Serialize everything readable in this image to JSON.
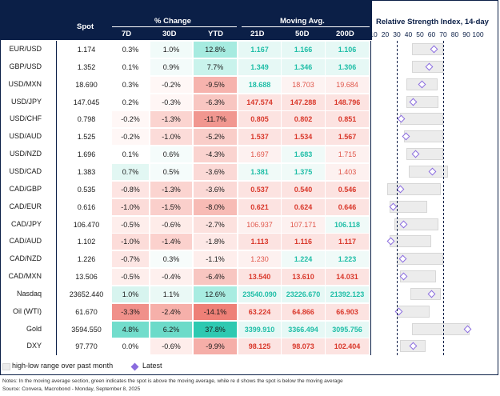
{
  "header": {
    "spot": "Spot",
    "pct_change": "% Change",
    "d7": "7D",
    "d30": "30D",
    "ytd": "YTD",
    "moving_avg": "Moving Avg.",
    "d21": "21D",
    "d50": "50D",
    "d200": "200D",
    "rsi_title": "Relative Strength Index, 14-day",
    "rsi_ticks": [
      "10",
      "20",
      "30",
      "40",
      "50",
      "60",
      "70",
      "80",
      "90",
      "100"
    ]
  },
  "rows": [
    {
      "label": "EUR/USD",
      "spot": "1.174",
      "d7": "0.3%",
      "d30": "1.0%",
      "ytd": "12.8%",
      "ma21": "1.167",
      "ma50": "1.166",
      "ma200": "1.106",
      "c7": "#ffffff",
      "c30": "#f1fbf9",
      "cy": "#a6ebe0",
      "m21": "#e6f8f5",
      "m50": "#e6f8f5",
      "m200": "#e6f8f5",
      "t21": "#1fbea7",
      "t50": "#1fbea7",
      "t200": "#1fbea7",
      "rsi_lo": 43,
      "rsi_hi": 70,
      "rsi": 62
    },
    {
      "label": "GBP/USD",
      "spot": "1.352",
      "d7": "0.1%",
      "d30": "0.9%",
      "ytd": "7.7%",
      "ma21": "1.349",
      "ma50": "1.346",
      "ma200": "1.306",
      "c7": "#ffffff",
      "c30": "#f3fbfa",
      "cy": "#c9f3ec",
      "m21": "#e6f8f5",
      "m50": "#e6f8f5",
      "m200": "#e6f8f5",
      "t21": "#1fbea7",
      "t50": "#1fbea7",
      "t200": "#1fbea7",
      "rsi_lo": 43,
      "rsi_hi": 70,
      "rsi": 58
    },
    {
      "label": "USD/MXN",
      "spot": "18.690",
      "d7": "0.3%",
      "d30": "-0.2%",
      "ytd": "-9.5%",
      "ma21": "18.688",
      "ma50": "18.703",
      "ma200": "19.684",
      "c7": "#ffffff",
      "c30": "#fff7f6",
      "cy": "#f6b3ad",
      "m21": "#f2fbf9",
      "m50": "#fdf3f2",
      "m200": "#fdf0ef",
      "t21": "#1fbea7",
      "t50": "#e0564a",
      "t200": "#e0564a",
      "rsi_lo": 38,
      "rsi_hi": 65,
      "rsi": 52
    },
    {
      "label": "USD/JPY",
      "spot": "147.045",
      "d7": "0.2%",
      "d30": "-0.3%",
      "ytd": "-6.3%",
      "ma21": "147.574",
      "ma50": "147.288",
      "ma200": "148.796",
      "c7": "#ffffff",
      "c30": "#fff6f5",
      "cy": "#f8c6c1",
      "m21": "#fce3e1",
      "m50": "#fce3e1",
      "m200": "#fce3e1",
      "t21": "#d9382b",
      "t50": "#d9382b",
      "t200": "#d9382b",
      "rsi_lo": 38,
      "rsi_hi": 66,
      "rsi": 44
    },
    {
      "label": "USD/CHF",
      "spot": "0.798",
      "d7": "-0.2%",
      "d30": "-1.3%",
      "ytd": "-11.7%",
      "ma21": "0.805",
      "ma50": "0.802",
      "ma200": "0.851",
      "c7": "#fff7f6",
      "c30": "#fbd4d0",
      "cy": "#f19790",
      "m21": "#fce3e1",
      "m50": "#fce3e1",
      "m200": "#fce3e1",
      "t21": "#d9382b",
      "t50": "#d9382b",
      "t200": "#d9382b",
      "rsi_lo": 33,
      "rsi_hi": 70,
      "rsi": 34
    },
    {
      "label": "USD/AUD",
      "spot": "1.525",
      "d7": "-0.2%",
      "d30": "-1.0%",
      "ytd": "-5.2%",
      "ma21": "1.537",
      "ma50": "1.534",
      "ma200": "1.567",
      "c7": "#fff7f6",
      "c30": "#fcdcd9",
      "cy": "#f9cdc8",
      "m21": "#fce3e1",
      "m50": "#fce3e1",
      "m200": "#fce3e1",
      "t21": "#d9382b",
      "t50": "#d9382b",
      "t200": "#d9382b",
      "rsi_lo": 36,
      "rsi_hi": 70,
      "rsi": 38
    },
    {
      "label": "USD/NZD",
      "spot": "1.696",
      "d7": "0.1%",
      "d30": "0.6%",
      "ytd": "-4.3%",
      "ma21": "1.697",
      "ma50": "1.683",
      "ma200": "1.715",
      "c7": "#ffffff",
      "c30": "#f5fcfb",
      "cy": "#fad3cf",
      "m21": "#fdf1f0",
      "m50": "#f0faf8",
      "m200": "#fdf1f0",
      "t21": "#e0564a",
      "t50": "#1fbea7",
      "t200": "#e0564a",
      "rsi_lo": 38,
      "rsi_hi": 70,
      "rsi": 46
    },
    {
      "label": "USD/CAD",
      "spot": "1.383",
      "d7": "0.7%",
      "d30": "0.5%",
      "ytd": "-3.6%",
      "ma21": "1.381",
      "ma50": "1.375",
      "ma200": "1.403",
      "c7": "#e2f7f3",
      "c30": "#f5fcfb",
      "cy": "#fbd9d6",
      "m21": "#f0faf8",
      "m50": "#f0faf8",
      "m200": "#fdf1f0",
      "t21": "#1fbea7",
      "t50": "#1fbea7",
      "t200": "#e0564a",
      "rsi_lo": 40,
      "rsi_hi": 74,
      "rsi": 61
    },
    {
      "label": "CAD/GBP",
      "spot": "0.535",
      "d7": "-0.8%",
      "d30": "-1.3%",
      "ytd": "-3.6%",
      "ma21": "0.537",
      "ma50": "0.540",
      "ma200": "0.546",
      "c7": "#fde4e2",
      "c30": "#fbd4d0",
      "cy": "#fbd9d6",
      "m21": "#fce3e1",
      "m50": "#fce3e1",
      "m200": "#fce3e1",
      "t21": "#d9382b",
      "t50": "#d9382b",
      "t200": "#d9382b",
      "rsi_lo": 22,
      "rsi_hi": 68,
      "rsi": 33
    },
    {
      "label": "CAD/EUR",
      "spot": "0.616",
      "d7": "-1.0%",
      "d30": "-1.5%",
      "ytd": "-8.0%",
      "ma21": "0.621",
      "ma50": "0.624",
      "ma200": "0.646",
      "c7": "#fcdcd9",
      "c30": "#facfcb",
      "cy": "#f7bbb5",
      "m21": "#fce3e1",
      "m50": "#fce3e1",
      "m200": "#fce3e1",
      "t21": "#d9382b",
      "t50": "#d9382b",
      "t200": "#d9382b",
      "rsi_lo": 24,
      "rsi_hi": 56,
      "rsi": 27
    },
    {
      "label": "CAD/JPY",
      "spot": "106.470",
      "d7": "-0.5%",
      "d30": "-0.6%",
      "ytd": "-2.7%",
      "ma21": "106.937",
      "ma50": "107.171",
      "ma200": "106.118",
      "c7": "#feeeec",
      "c30": "#feece9",
      "cy": "#fce1de",
      "m21": "#fdf1f0",
      "m50": "#fdf1f0",
      "m200": "#f0faf8",
      "t21": "#e0564a",
      "t50": "#e0564a",
      "t200": "#1fbea7",
      "rsi_lo": 28,
      "rsi_hi": 66,
      "rsi": 36
    },
    {
      "label": "CAD/AUD",
      "spot": "1.102",
      "d7": "-1.0%",
      "d30": "-1.4%",
      "ytd": "-1.8%",
      "ma21": "1.113",
      "ma50": "1.116",
      "ma200": "1.117",
      "c7": "#fcdcd9",
      "c30": "#fbd1cd",
      "cy": "#fde8e6",
      "m21": "#fce3e1",
      "m50": "#fce3e1",
      "m200": "#fce3e1",
      "t21": "#d9382b",
      "t50": "#d9382b",
      "t200": "#d9382b",
      "rsi_lo": 24,
      "rsi_hi": 60,
      "rsi": 25
    },
    {
      "label": "CAD/NZD",
      "spot": "1.226",
      "d7": "-0.7%",
      "d30": "0.3%",
      "ytd": "-1.1%",
      "ma21": "1.230",
      "ma50": "1.224",
      "ma200": "1.223",
      "c7": "#fde6e4",
      "c30": "#f7fcfb",
      "cy": "#feeeec",
      "m21": "#fdf1f0",
      "m50": "#f0faf8",
      "m200": "#f0faf8",
      "t21": "#e0564a",
      "t50": "#1fbea7",
      "t200": "#1fbea7",
      "rsi_lo": 30,
      "rsi_hi": 70,
      "rsi": 35
    },
    {
      "label": "CAD/MXN",
      "spot": "13.506",
      "d7": "-0.5%",
      "d30": "-0.4%",
      "ytd": "-6.4%",
      "ma21": "13.540",
      "ma50": "13.610",
      "ma200": "14.031",
      "c7": "#feeeec",
      "c30": "#fef0ee",
      "cy": "#f8c6c1",
      "m21": "#fce3e1",
      "m50": "#fce3e1",
      "m200": "#fce3e1",
      "t21": "#d9382b",
      "t50": "#d9382b",
      "t200": "#d9382b",
      "rsi_lo": 33,
      "rsi_hi": 64,
      "rsi": 36
    },
    {
      "label": "Nasdaq",
      "spot": "23652.440",
      "d7": "1.0%",
      "d30": "1.1%",
      "ytd": "12.6%",
      "ma21": "23540.090",
      "ma50": "23226.670",
      "ma200": "21392.123",
      "c7": "#d7f4ef",
      "c30": "#eaf9f6",
      "cy": "#a8ece1",
      "m21": "#e6f8f5",
      "m50": "#e6f8f5",
      "m200": "#e6f8f5",
      "t21": "#1fbea7",
      "t50": "#1fbea7",
      "t200": "#1fbea7",
      "rsi_lo": 42,
      "rsi_hi": 68,
      "rsi": 60
    },
    {
      "label": "Oil (WTI)",
      "spot": "61.670",
      "d7": "-3.3%",
      "d30": "-2.4%",
      "ytd": "-14.1%",
      "ma21": "63.224",
      "ma50": "64.866",
      "ma200": "66.903",
      "c7": "#f0908a",
      "c30": "#f6b0aa",
      "cy": "#ee8077",
      "m21": "#fce3e1",
      "m50": "#fce3e1",
      "m200": "#fce3e1",
      "t21": "#d9382b",
      "t50": "#d9382b",
      "t200": "#d9382b",
      "rsi_lo": 30,
      "rsi_hi": 58,
      "rsi": 32
    },
    {
      "label": "Gold",
      "spot": "3594.550",
      "d7": "4.8%",
      "d30": "6.2%",
      "ytd": "37.8%",
      "ma21": "3399.910",
      "ma50": "3366.494",
      "ma200": "3095.756",
      "c7": "#72ddcc",
      "c30": "#6cdbc9",
      "cy": "#2ec9b1",
      "m21": "#e6f8f5",
      "m50": "#e6f8f5",
      "m200": "#e6f8f5",
      "t21": "#1fbea7",
      "t50": "#1fbea7",
      "t200": "#1fbea7",
      "rsi_lo": 43,
      "rsi_hi": 93,
      "rsi": 91
    },
    {
      "label": "DXY",
      "spot": "97.770",
      "d7": "0.0%",
      "d30": "-0.6%",
      "ytd": "-9.9%",
      "ma21": "98.125",
      "ma50": "98.073",
      "ma200": "102.404",
      "c7": "#ffffff",
      "c30": "#feedeb",
      "cy": "#f5aea8",
      "m21": "#fce3e1",
      "m50": "#fce3e1",
      "m200": "#fce3e1",
      "t21": "#d9382b",
      "t50": "#d9382b",
      "t200": "#d9382b",
      "rsi_lo": 33,
      "rsi_hi": 55,
      "rsi": 44
    }
  ],
  "legend": {
    "range": "high-low range over past month",
    "latest": "Latest"
  },
  "notes": {
    "line1": "Notes: In the moving average section, green indicates the spot is above the moving average, while re  d shows the spot is below  the moving average",
    "line2": "Source: Convera, Macrobond - Monday, September 8, 2025"
  },
  "colors": {
    "navy": "#0b1f47",
    "latest_marker": "#8a6cde",
    "range_box": "#ececec"
  }
}
